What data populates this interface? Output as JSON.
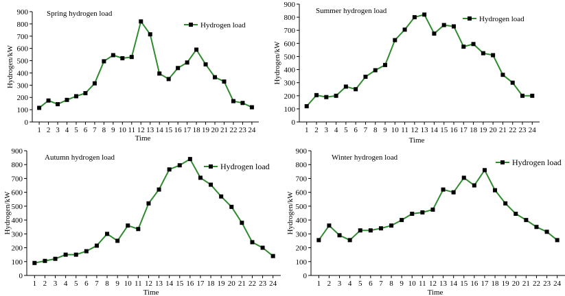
{
  "chart_data": [
    {
      "type": "line",
      "title": "Spring hydrogen load",
      "xlabel": "Time",
      "ylabel": "Hydrogen/kW",
      "ylim": [
        0,
        900
      ],
      "yticks": [
        0,
        100,
        200,
        300,
        400,
        500,
        600,
        700,
        800,
        900
      ],
      "categories": [
        "1",
        "2",
        "3",
        "4",
        "5",
        "6",
        "7",
        "8",
        "9",
        "10",
        "11",
        "12",
        "13",
        "14",
        "15",
        "16",
        "17",
        "18",
        "19",
        "20",
        "21",
        "22",
        "23",
        "24"
      ],
      "series": [
        {
          "name": "Hydrogen load",
          "color": "#2e8b2e",
          "values": [
            115,
            175,
            145,
            180,
            210,
            235,
            315,
            495,
            545,
            520,
            530,
            820,
            715,
            395,
            350,
            440,
            485,
            590,
            470,
            365,
            330,
            170,
            155,
            120
          ]
        }
      ],
      "legend_position": "top-right",
      "grid": false
    },
    {
      "type": "line",
      "title": "Summer hydrogen load",
      "xlabel": "Time",
      "ylabel": "Hydrogen/kW",
      "ylim": [
        0,
        900
      ],
      "yticks": [
        0,
        100,
        200,
        300,
        400,
        500,
        600,
        700,
        800,
        900
      ],
      "categories": [
        "1",
        "2",
        "3",
        "4",
        "5",
        "6",
        "7",
        "8",
        "9",
        "10",
        "11",
        "12",
        "13",
        "14",
        "15",
        "16",
        "17",
        "18",
        "19",
        "20",
        "21",
        "22",
        "23",
        "24"
      ],
      "series": [
        {
          "name": "Hydrogen load",
          "color": "#2e8b2e",
          "values": [
            120,
            205,
            190,
            200,
            270,
            250,
            345,
            395,
            435,
            625,
            705,
            800,
            820,
            675,
            740,
            730,
            575,
            595,
            525,
            510,
            360,
            300,
            200,
            200
          ]
        }
      ],
      "legend_position": "top-right",
      "grid": false
    },
    {
      "type": "line",
      "title": "Autumn hydrogen load",
      "xlabel": "Time",
      "ylabel": "Hydrogen/kW",
      "ylim": [
        0,
        900
      ],
      "yticks": [
        0,
        100,
        200,
        300,
        400,
        500,
        600,
        700,
        800,
        900
      ],
      "categories": [
        "1",
        "2",
        "3",
        "4",
        "5",
        "6",
        "7",
        "8",
        "9",
        "10",
        "11",
        "12",
        "13",
        "14",
        "15",
        "16",
        "17",
        "18",
        "19",
        "20",
        "21",
        "22",
        "23",
        "24"
      ],
      "series": [
        {
          "name": "Hydrogen load",
          "color": "#2e8b2e",
          "values": [
            90,
            105,
            120,
            150,
            150,
            175,
            215,
            300,
            250,
            360,
            335,
            520,
            620,
            765,
            795,
            840,
            705,
            655,
            570,
            495,
            380,
            240,
            200,
            140
          ]
        }
      ],
      "legend_position": "top-right",
      "grid": false
    },
    {
      "type": "line",
      "title": "Winter hydrogen load",
      "xlabel": "Time",
      "ylabel": "Hydrogen/kW",
      "ylim": [
        0,
        900
      ],
      "yticks": [
        0,
        100,
        200,
        300,
        400,
        500,
        600,
        700,
        800,
        900
      ],
      "categories": [
        "1",
        "2",
        "3",
        "4",
        "5",
        "6",
        "7",
        "8",
        "9",
        "10",
        "11",
        "12",
        "13",
        "14",
        "15",
        "16",
        "17",
        "18",
        "19",
        "20",
        "21",
        "22",
        "23",
        "24"
      ],
      "series": [
        {
          "name": "Hydrogen load",
          "color": "#2e8b2e",
          "values": [
            255,
            360,
            290,
            255,
            325,
            325,
            340,
            360,
            400,
            445,
            455,
            475,
            620,
            600,
            705,
            650,
            760,
            615,
            520,
            445,
            400,
            350,
            315,
            255
          ]
        }
      ],
      "legend_position": "top-right",
      "grid": false
    }
  ]
}
